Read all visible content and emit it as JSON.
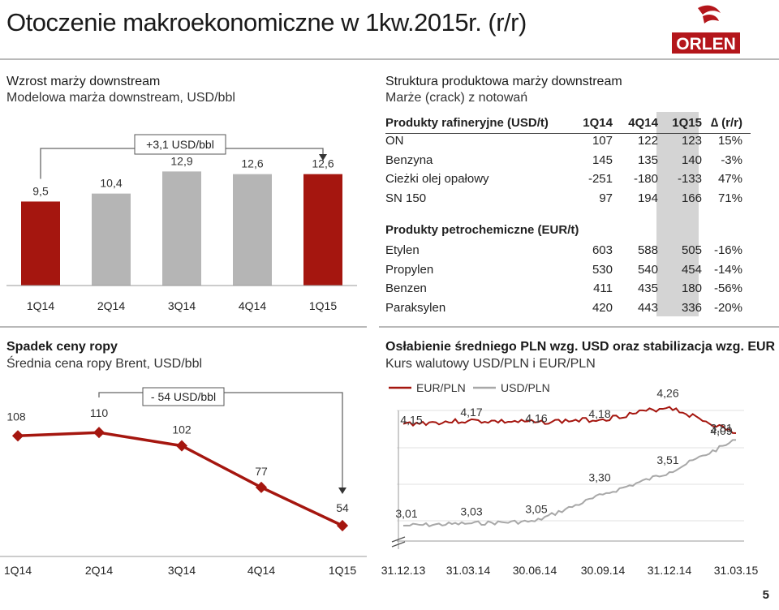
{
  "header": {
    "title": "Otoczenie makroekonomiczne w 1kw.2015r. (r/r)",
    "logo_text": "ORLEN",
    "brand_color": "#b4161b"
  },
  "page_number": "5",
  "panels": {
    "margin": {
      "title": "Wzrost marży downstream",
      "subtitle": "Modelowa marża downstream, USD/bbl",
      "annotation": "+3,1 USD/bbl"
    },
    "structure": {
      "title": "Struktura produktowa marży downstream",
      "subtitle": "Marże (crack) z notowań",
      "refinery_header": "Produkty rafineryjne (USD/t)",
      "petchem_header": "Produkty petrochemiczne (EUR/t)",
      "col_1q14": "1Q14",
      "col_4q14": "4Q14",
      "col_1q15": "1Q15",
      "col_delta": "∆ (r/r)"
    },
    "oil": {
      "title": "Spadek ceny ropy",
      "subtitle": "Średnia cena ropy Brent, USD/bbl",
      "annotation": "- 54 USD/bbl"
    },
    "fx": {
      "title": "Osłabienie średniego PLN wzg. USD oraz stabilizacja wzg. EUR",
      "subtitle": "Kurs walutowy USD/PLN i EUR/PLN"
    }
  },
  "table": {
    "refinery": [
      {
        "name": "ON",
        "v1": "107",
        "v2": "122",
        "v3": "123",
        "d": "15%"
      },
      {
        "name": "Benzyna",
        "v1": "145",
        "v2": "135",
        "v3": "140",
        "d": "-3%"
      },
      {
        "name": "Cieżki olej opałowy",
        "v1": "-251",
        "v2": "-180",
        "v3": "-133",
        "d": "47%"
      },
      {
        "name": "SN 150",
        "v1": "97",
        "v2": "194",
        "v3": "166",
        "d": "71%"
      }
    ],
    "petchem": [
      {
        "name": "Etylen",
        "v1": "603",
        "v2": "588",
        "v3": "505",
        "d": "-16%"
      },
      {
        "name": "Propylen",
        "v1": "530",
        "v2": "540",
        "v3": "454",
        "d": "-14%"
      },
      {
        "name": "Benzen",
        "v1": "411",
        "v2": "435",
        "v3": "180",
        "d": "-56%"
      },
      {
        "name": "Paraksylen",
        "v1": "420",
        "v2": "443",
        "v3": "336",
        "d": "-20%"
      }
    ]
  },
  "chart_data": [
    {
      "type": "bar",
      "categories": [
        "1Q14",
        "2Q14",
        "3Q14",
        "4Q14",
        "1Q15"
      ],
      "values": [
        9.5,
        10.4,
        12.9,
        12.6,
        12.6
      ],
      "labels": [
        "9,5",
        "10,4",
        "12,9",
        "12,6",
        "12,6"
      ],
      "colors": [
        "#a5160f",
        "#b5b5b5",
        "#b5b5b5",
        "#b5b5b5",
        "#a5160f"
      ]
    },
    {
      "type": "line",
      "categories": [
        "1Q14",
        "2Q14",
        "3Q14",
        "4Q14",
        "1Q15"
      ],
      "values": [
        108,
        110,
        102,
        77,
        54
      ],
      "labels": [
        "108",
        "110",
        "102",
        "77",
        "54"
      ],
      "color": "#a5160f"
    },
    {
      "type": "line",
      "x_ticks": [
        "31.12.13",
        "31.03.14",
        "30.06.14",
        "30.09.14",
        "31.12.14",
        "31.03.15"
      ],
      "series": [
        {
          "name": "EUR/PLN",
          "color": "#a5160f",
          "points": [
            [
              "31.12.13",
              4.15
            ],
            [
              "31.03.14",
              4.17
            ],
            [
              "30.06.14",
              4.16
            ],
            [
              "30.09.14",
              4.18
            ],
            [
              "31.12.14",
              4.26
            ],
            [
              "31.03.15",
              4.09
            ]
          ],
          "labels": [
            [
              "31.12.13",
              "4,15"
            ],
            [
              "31.03.14",
              "4,17"
            ],
            [
              "30.06.14",
              "4,16"
            ],
            [
              "30.09.14",
              "4,18"
            ],
            [
              "31.12.14",
              "4,26"
            ],
            [
              "31.03.15",
              "4,09"
            ]
          ]
        },
        {
          "name": "USD/PLN",
          "color": "#a8a8a8",
          "points": [
            [
              "31.12.13",
              3.01
            ],
            [
              "31.03.14",
              3.03
            ],
            [
              "30.06.14",
              3.05
            ],
            [
              "30.09.14",
              3.3
            ],
            [
              "31.12.14",
              3.51
            ],
            [
              "31.03.15",
              3.81
            ]
          ],
          "labels": [
            [
              "31.12.13",
              "3,01"
            ],
            [
              "31.03.14",
              "3,03"
            ],
            [
              "30.06.14",
              "3,05"
            ],
            [
              "30.09.14",
              "3,30"
            ],
            [
              "31.12.14",
              "3,51"
            ],
            [
              "31.03.15",
              "3,81"
            ]
          ]
        }
      ]
    }
  ]
}
